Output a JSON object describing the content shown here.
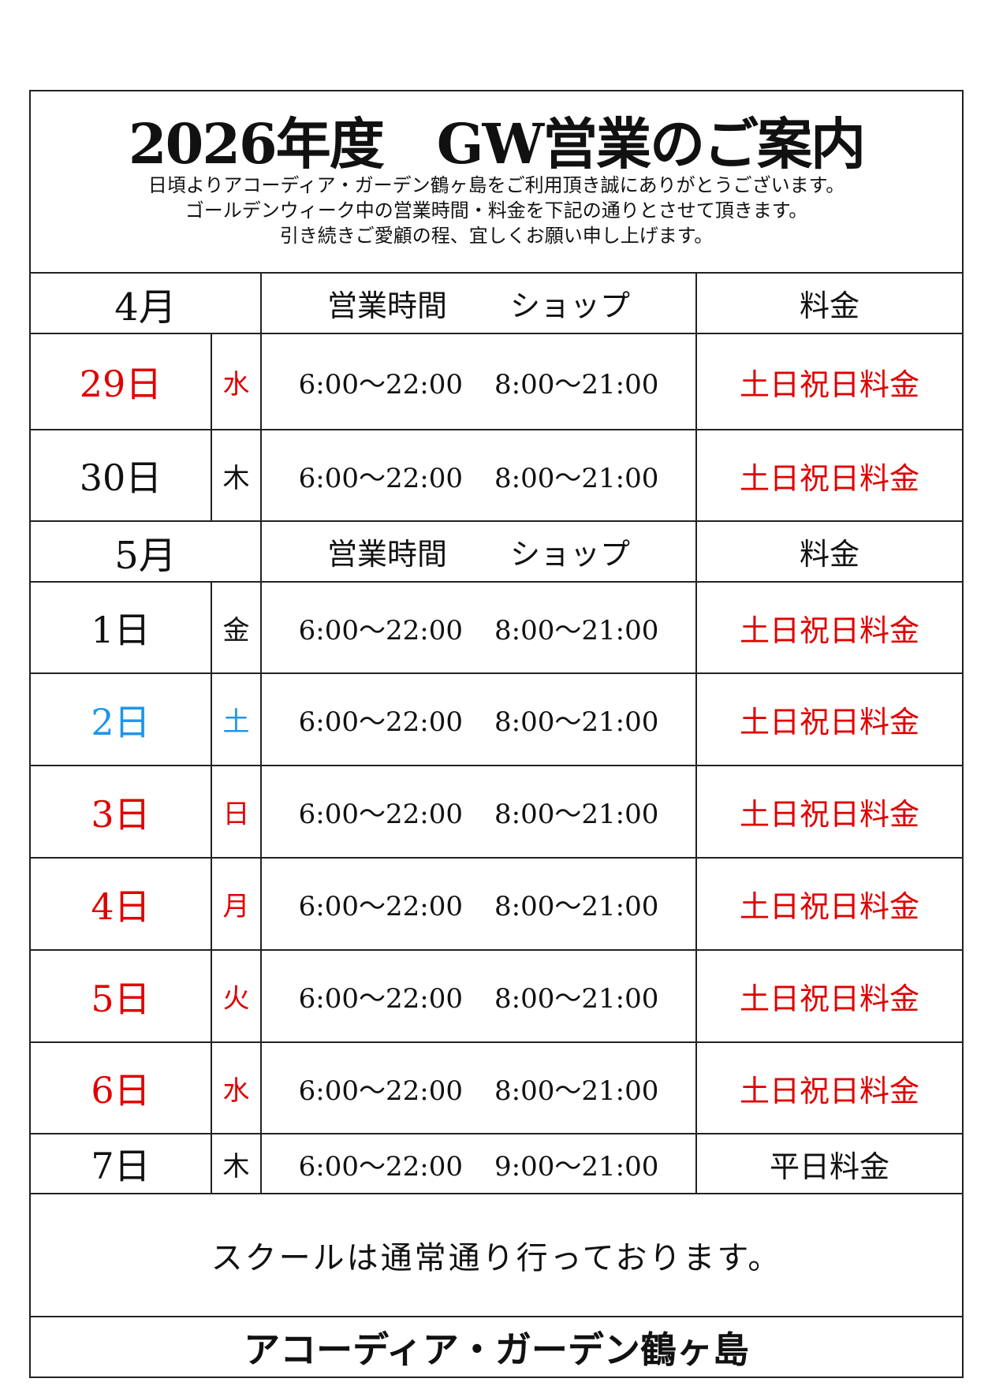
{
  "title": "2026年度　GW営業のご案内",
  "intro": [
    "日頃よりアコーディア・ガーデン鶴ヶ島をご利用頂き誠にありがとうございます。",
    "ゴールデンウィーク中の営業時間・料金を下記の通りとさせて頂きます。",
    "引き続きご愛顧の程、宜しくお願い申し上げます。"
  ],
  "colors": {
    "red": "#e00000",
    "blue": "#1e96e8",
    "black": "#111111"
  },
  "column_headers": {
    "hours": "営業時間",
    "shop": "ショップ",
    "price": "料金"
  },
  "sections": [
    {
      "month": "4月",
      "rows": [
        {
          "day": "29日",
          "weekday": "水",
          "hours": "6:00～22:00",
          "shop": "8:00～21:00",
          "price": "土日祝日料金",
          "day_color": "red",
          "price_color": "red",
          "height": 122
        },
        {
          "day": "30日",
          "weekday": "木",
          "hours": "6:00～22:00",
          "shop": "8:00～21:00",
          "price": "土日祝日料金",
          "day_color": "black",
          "price_color": "red",
          "height": 116
        }
      ]
    },
    {
      "month": "5月",
      "rows": [
        {
          "day": "1日",
          "weekday": "金",
          "hours": "6:00～22:00",
          "shop": "8:00～21:00",
          "price": "土日祝日料金",
          "day_color": "black",
          "price_color": "red",
          "height": 116
        },
        {
          "day": "2日",
          "weekday": "土",
          "hours": "6:00～22:00",
          "shop": "8:00～21:00",
          "price": "土日祝日料金",
          "day_color": "blue",
          "price_color": "red",
          "height": 117
        },
        {
          "day": "3日",
          "weekday": "日",
          "hours": "6:00～22:00",
          "shop": "8:00～21:00",
          "price": "土日祝日料金",
          "day_color": "red",
          "price_color": "red",
          "height": 117
        },
        {
          "day": "4日",
          "weekday": "月",
          "hours": "6:00～22:00",
          "shop": "8:00～21:00",
          "price": "土日祝日料金",
          "day_color": "red",
          "price_color": "red",
          "height": 117
        },
        {
          "day": "5日",
          "weekday": "火",
          "hours": "6:00～22:00",
          "shop": "8:00～21:00",
          "price": "土日祝日料金",
          "day_color": "red",
          "price_color": "red",
          "height": 117
        },
        {
          "day": "6日",
          "weekday": "水",
          "hours": "6:00～22:00",
          "shop": "8:00～21:00",
          "price": "土日祝日料金",
          "day_color": "red",
          "price_color": "red",
          "height": 116
        },
        {
          "day": "7日",
          "weekday": "木",
          "hours": "6:00～22:00",
          "shop": "9:00～21:00",
          "price": "平日料金",
          "day_color": "black",
          "price_color": "black",
          "height": 76
        }
      ]
    }
  ],
  "school_note": "スクールは通常通り行っております。",
  "footer": "アコーディア・ガーデン鶴ヶ島"
}
